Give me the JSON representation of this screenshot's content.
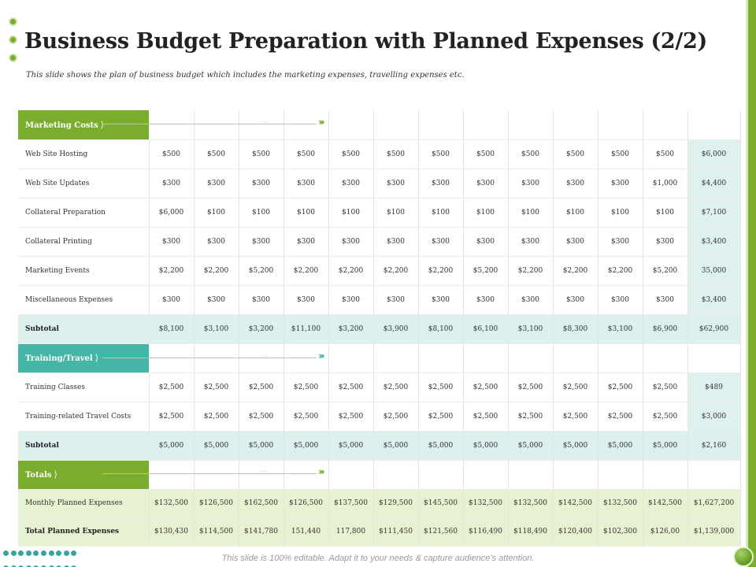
{
  "title": "Business Budget Preparation with Planned Expenses (2/2)",
  "subtitle": "This slide shows the plan of business budget which includes the marketing expenses, travelling expenses etc.",
  "footer": "This slide is 100% editable. Adapt it to your needs & capture audience’s attention.",
  "colors": {
    "green": "#7aac2e",
    "teal": "#45b5a5",
    "light_teal": "#dcf0ee",
    "light_green": "#e7f2d3"
  },
  "sections": {
    "marketing": {
      "label": "Marketing Costs",
      "rows": [
        {
          "label": "Web Site Hosting",
          "values": [
            "$500",
            "$500",
            "$500",
            "$500",
            "$500",
            "$500",
            "$500",
            "$500",
            "$500",
            "$500",
            "$500",
            "$500"
          ],
          "total": "$6,000"
        },
        {
          "label": "Web Site Updates",
          "values": [
            "$300",
            "$300",
            "$300",
            "$300",
            "$300",
            "$300",
            "$300",
            "$300",
            "$300",
            "$300",
            "$300",
            "$1,000"
          ],
          "total": "$4,400"
        },
        {
          "label": "Collateral Preparation",
          "values": [
            "$6,000",
            "$100",
            "$100",
            "$100",
            "$100",
            "$100",
            "$100",
            "$100",
            "$100",
            "$100",
            "$100",
            "$100"
          ],
          "total": "$7,100"
        },
        {
          "label": "Collateral Printing",
          "values": [
            "$300",
            "$300",
            "$300",
            "$300",
            "$300",
            "$300",
            "$300",
            "$300",
            "$300",
            "$300",
            "$300",
            "$300"
          ],
          "total": "$3,400"
        },
        {
          "label": "Marketing Events",
          "values": [
            "$2,200",
            "$2,200",
            "$5,200",
            "$2,200",
            "$2,200",
            "$2,200",
            "$2,200",
            "$5,200",
            "$2,200",
            "$2,200",
            "$2,200",
            "$5,200"
          ],
          "total": "35,000"
        },
        {
          "label": "Miscellaneous Expenses",
          "values": [
            "$300",
            "$300",
            "$300",
            "$300",
            "$300",
            "$300",
            "$300",
            "$300",
            "$300",
            "$300",
            "$300",
            "$300"
          ],
          "total": "$3,400"
        }
      ],
      "subtotal": {
        "label": "Subtotal",
        "values": [
          "$8,100",
          "$3,100",
          "$3,200",
          "$11,100",
          "$3,200",
          "$3,900",
          "$8,100",
          "$6,100",
          "$3,100",
          "$8,300",
          "$3,100",
          "$6,900"
        ],
        "total": "$62,900"
      }
    },
    "training": {
      "label": "Training/Travel",
      "rows": [
        {
          "label": "Training Classes",
          "values": [
            "$2,500",
            "$2,500",
            "$2,500",
            "$2,500",
            "$2,500",
            "$2,500",
            "$2,500",
            "$2,500",
            "$2,500",
            "$2,500",
            "$2,500",
            "$2,500"
          ],
          "total": "$489"
        },
        {
          "label": "Training-related Travel Costs",
          "values": [
            "$2,500",
            "$2,500",
            "$2,500",
            "$2,500",
            "$2,500",
            "$2,500",
            "$2,500",
            "$2,500",
            "$2,500",
            "$2,500",
            "$2,500",
            "$2,500"
          ],
          "total": "$3,000"
        }
      ],
      "subtotal": {
        "label": "Subtotal",
        "values": [
          "$5,000",
          "$5,000",
          "$5,000",
          "$5,000",
          "$5,000",
          "$5,000",
          "$5,000",
          "$5,000",
          "$5,000",
          "$5,000",
          "$5,000",
          "$5,000"
        ],
        "total": "$2,160"
      }
    },
    "totals": {
      "label": "Totals",
      "rows": [
        {
          "label": "Monthly Planned Expenses",
          "values": [
            "$132,500",
            "$126,500",
            "$162,500",
            "$126,500",
            "$137,500",
            "$129,500",
            "$145,500",
            "$132,500",
            "$132,500",
            "$142,500",
            "$132,500",
            "$142,500"
          ],
          "total": "$1,627,200"
        },
        {
          "label": "Total Planned Expenses",
          "values": [
            "$130,430",
            "$114,500",
            "$141,780",
            "151,440",
            "117,800",
            "$111,450",
            "$121,560",
            "$116,490",
            "$118,490",
            "$120,400",
            "$102,300",
            "$126,00"
          ],
          "total": "$1,139,000"
        }
      ]
    }
  }
}
